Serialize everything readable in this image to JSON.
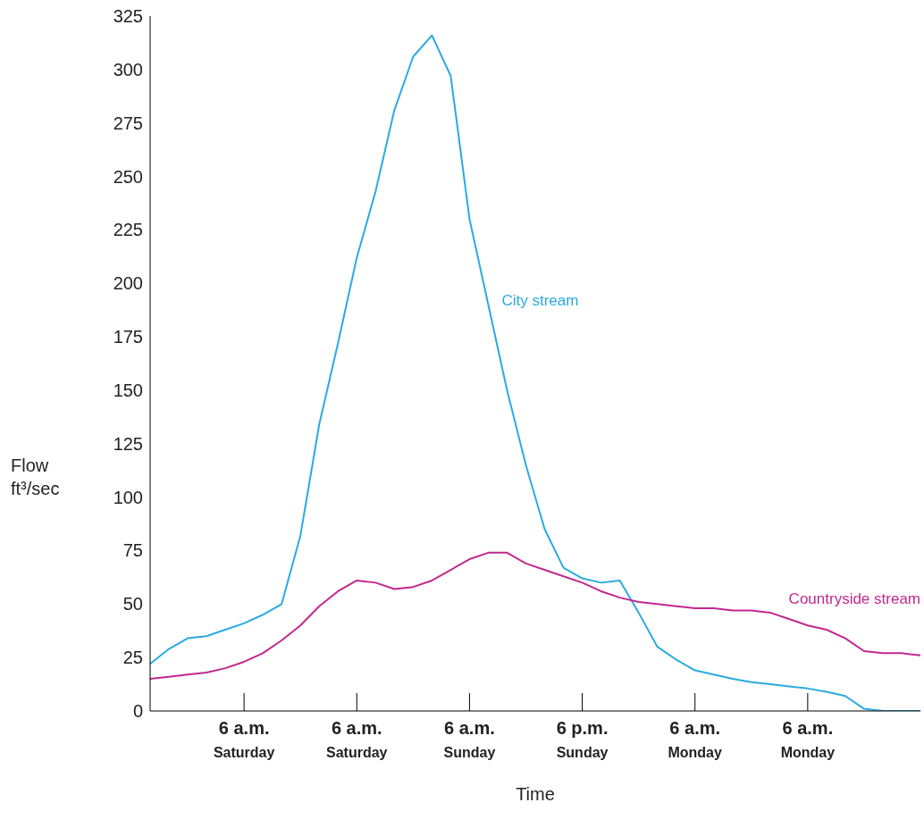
{
  "chart_data": {
    "type": "line",
    "xlabel": "Time",
    "ylabel": "Flow\nft³/sec",
    "categories": [
      null,
      null,
      null,
      null,
      null,
      "6 a.m.\nSaturday",
      null,
      null,
      null,
      null,
      null,
      "6 a.m.\nSaturday",
      null,
      null,
      null,
      null,
      null,
      "6 a.m.\nSunday",
      null,
      null,
      null,
      null,
      null,
      "6 p.m.\nSunday",
      null,
      null,
      null,
      null,
      null,
      "6 a.m.\nMonday",
      null,
      null,
      null,
      null,
      null,
      "6 a.m.\nMonday",
      null,
      null,
      null,
      null,
      null,
      null
    ],
    "ylim": [
      0,
      325
    ],
    "yticks": [
      0,
      25,
      50,
      75,
      100,
      125,
      150,
      175,
      200,
      225,
      250,
      275,
      300,
      325
    ],
    "marker": "none",
    "line_style": "solid",
    "series": [
      {
        "name": "City stream",
        "color": "#29abe2",
        "values": [
          22,
          29,
          34,
          35,
          38,
          41,
          45,
          50,
          82,
          134,
          172,
          212,
          243,
          281,
          306,
          316,
          297,
          230,
          190,
          150,
          115,
          85,
          67,
          62,
          60,
          61,
          46,
          30,
          24,
          19,
          17,
          15,
          13.5,
          12.5,
          11.5,
          10.5,
          9,
          7,
          1,
          0,
          0,
          0
        ]
      },
      {
        "name": "Countryside stream",
        "color": "#c2288f",
        "values": [
          15,
          16,
          17,
          18,
          20,
          23,
          27,
          33,
          40,
          49,
          56,
          61,
          60,
          57,
          58,
          61,
          66,
          71,
          74,
          74,
          69,
          66,
          63,
          60,
          56,
          53,
          51,
          50,
          49,
          48,
          48,
          47,
          47,
          46,
          43,
          40,
          38,
          34,
          28,
          27,
          27,
          26
        ]
      }
    ]
  }
}
